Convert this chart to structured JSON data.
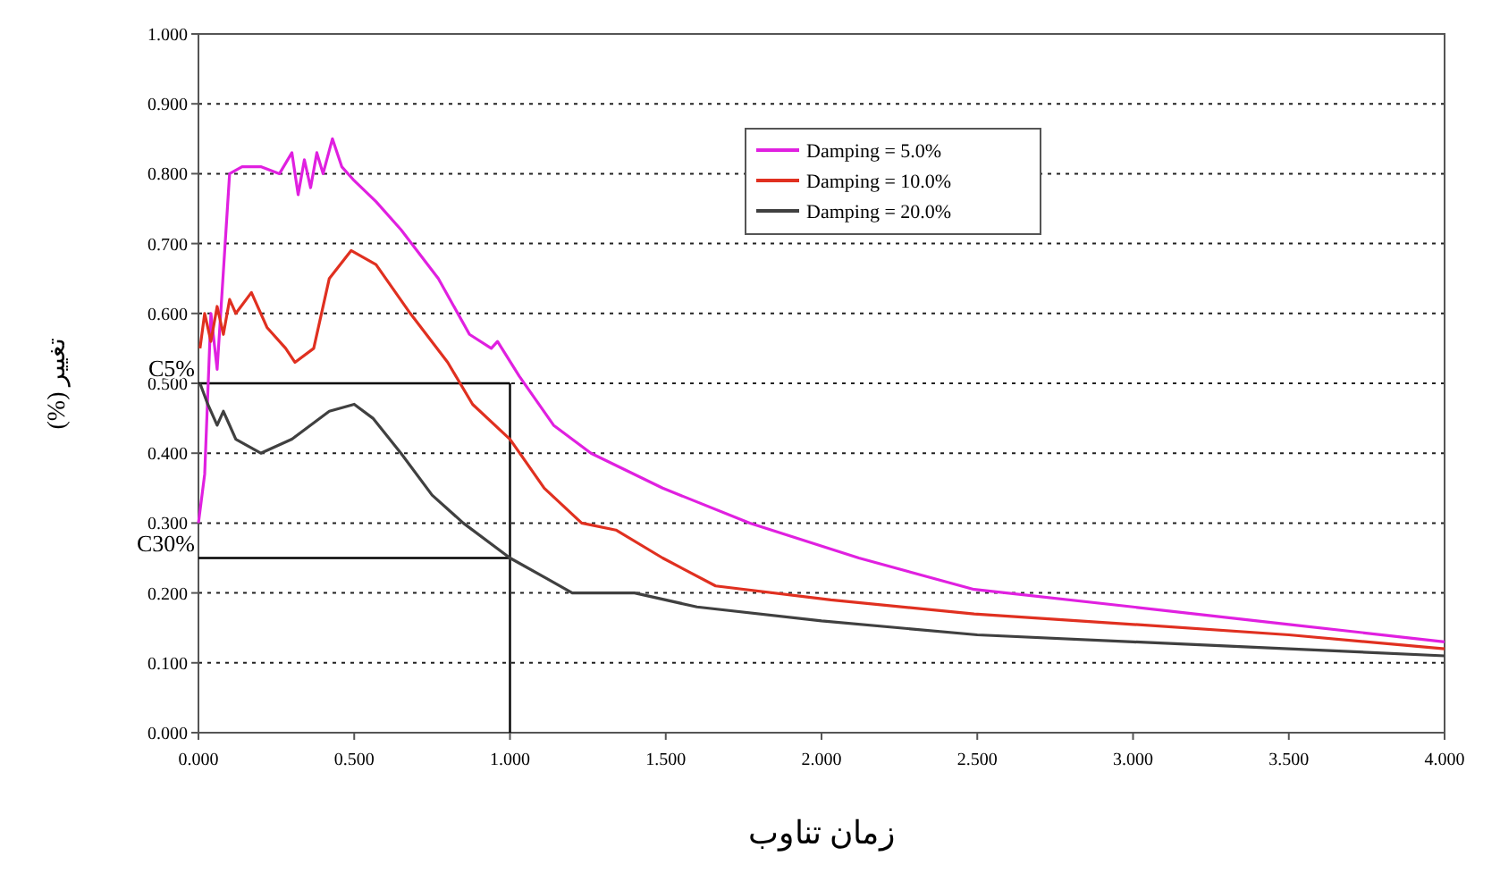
{
  "chart_data": {
    "type": "line",
    "xlabel": "زمان تناوب",
    "ylabel": "تغییر (%)",
    "xlim": [
      0,
      4
    ],
    "ylim": [
      0,
      1
    ],
    "xticks": [
      {
        "value": 0,
        "label": "0.000"
      },
      {
        "value": 0.5,
        "label": "0.500"
      },
      {
        "value": 1,
        "label": "1.000"
      },
      {
        "value": 1.5,
        "label": "1.500"
      },
      {
        "value": 2,
        "label": "2.000"
      },
      {
        "value": 2.5,
        "label": "2.500"
      },
      {
        "value": 3,
        "label": "3.000"
      },
      {
        "value": 3.5,
        "label": "3.500"
      },
      {
        "value": 4,
        "label": "4.000"
      }
    ],
    "yticks": [
      {
        "value": 0,
        "label": "0.000"
      },
      {
        "value": 0.1,
        "label": "0.100"
      },
      {
        "value": 0.2,
        "label": "0.200"
      },
      {
        "value": 0.3,
        "label": "0.300"
      },
      {
        "value": 0.4,
        "label": "0.400"
      },
      {
        "value": 0.5,
        "label": "0.500"
      },
      {
        "value": 0.6,
        "label": "0.600"
      },
      {
        "value": 0.7,
        "label": "0.700"
      },
      {
        "value": 0.8,
        "label": "0.800"
      },
      {
        "value": 0.9,
        "label": "0.900"
      },
      {
        "value": 1,
        "label": "1.000"
      }
    ],
    "grid": "y",
    "legend": "top",
    "line_style": "solid",
    "ref_lines": [
      {
        "axis": "y",
        "value": 0.5,
        "label": "C5%",
        "color": "#000000"
      },
      {
        "axis": "y",
        "value": 0.25,
        "label": "C30%",
        "color": "#000000"
      },
      {
        "axis": "x",
        "value": 1,
        "color": "#000000"
      }
    ],
    "series": [
      {
        "name": "Damping = 5.0%",
        "color": "#e020e0",
        "x": [
          0,
          0.02,
          0.04,
          0.06,
          0.08,
          0.1,
          0.14,
          0.2,
          0.26,
          0.3,
          0.32,
          0.34,
          0.36,
          0.38,
          0.4,
          0.43,
          0.46,
          0.5,
          0.57,
          0.65,
          0.77,
          0.87,
          0.94,
          0.96,
          1.03,
          1.14,
          1.26,
          1.49,
          1.77,
          2.12,
          2.49,
          3,
          3.5,
          4
        ],
        "values": [
          0.3,
          0.37,
          0.6,
          0.52,
          0.66,
          0.8,
          0.81,
          0.81,
          0.8,
          0.83,
          0.77,
          0.82,
          0.78,
          0.83,
          0.8,
          0.85,
          0.81,
          0.79,
          0.76,
          0.72,
          0.65,
          0.57,
          0.55,
          0.56,
          0.51,
          0.44,
          0.4,
          0.35,
          0.3,
          0.25,
          0.205,
          0.18,
          0.155,
          0.13
        ]
      },
      {
        "name": "Damping = 10.0%",
        "color": "#e03020",
        "x": [
          0.005,
          0.02,
          0.04,
          0.06,
          0.08,
          0.1,
          0.12,
          0.17,
          0.22,
          0.28,
          0.31,
          0.37,
          0.42,
          0.49,
          0.57,
          0.68,
          0.8,
          0.88,
          1,
          1.11,
          1.23,
          1.34,
          1.49,
          1.66,
          2.03,
          2.49,
          3,
          3.5,
          4
        ],
        "values": [
          0.55,
          0.6,
          0.56,
          0.61,
          0.57,
          0.62,
          0.6,
          0.63,
          0.58,
          0.55,
          0.53,
          0.55,
          0.65,
          0.69,
          0.67,
          0.6,
          0.53,
          0.47,
          0.42,
          0.35,
          0.3,
          0.29,
          0.25,
          0.21,
          0.19,
          0.17,
          0.155,
          0.14,
          0.12
        ]
      },
      {
        "name": "Damping = 20.0%",
        "color": "#404040",
        "x": [
          0.005,
          0.03,
          0.06,
          0.08,
          0.12,
          0.2,
          0.3,
          0.42,
          0.5,
          0.56,
          0.65,
          0.75,
          0.85,
          1,
          1.12,
          1.2,
          1.4,
          1.6,
          2,
          2.5,
          3,
          3.5,
          4
        ],
        "values": [
          0.5,
          0.47,
          0.44,
          0.46,
          0.42,
          0.4,
          0.42,
          0.46,
          0.47,
          0.45,
          0.4,
          0.34,
          0.3,
          0.25,
          0.22,
          0.2,
          0.2,
          0.18,
          0.16,
          0.14,
          0.13,
          0.12,
          0.11
        ]
      }
    ]
  }
}
